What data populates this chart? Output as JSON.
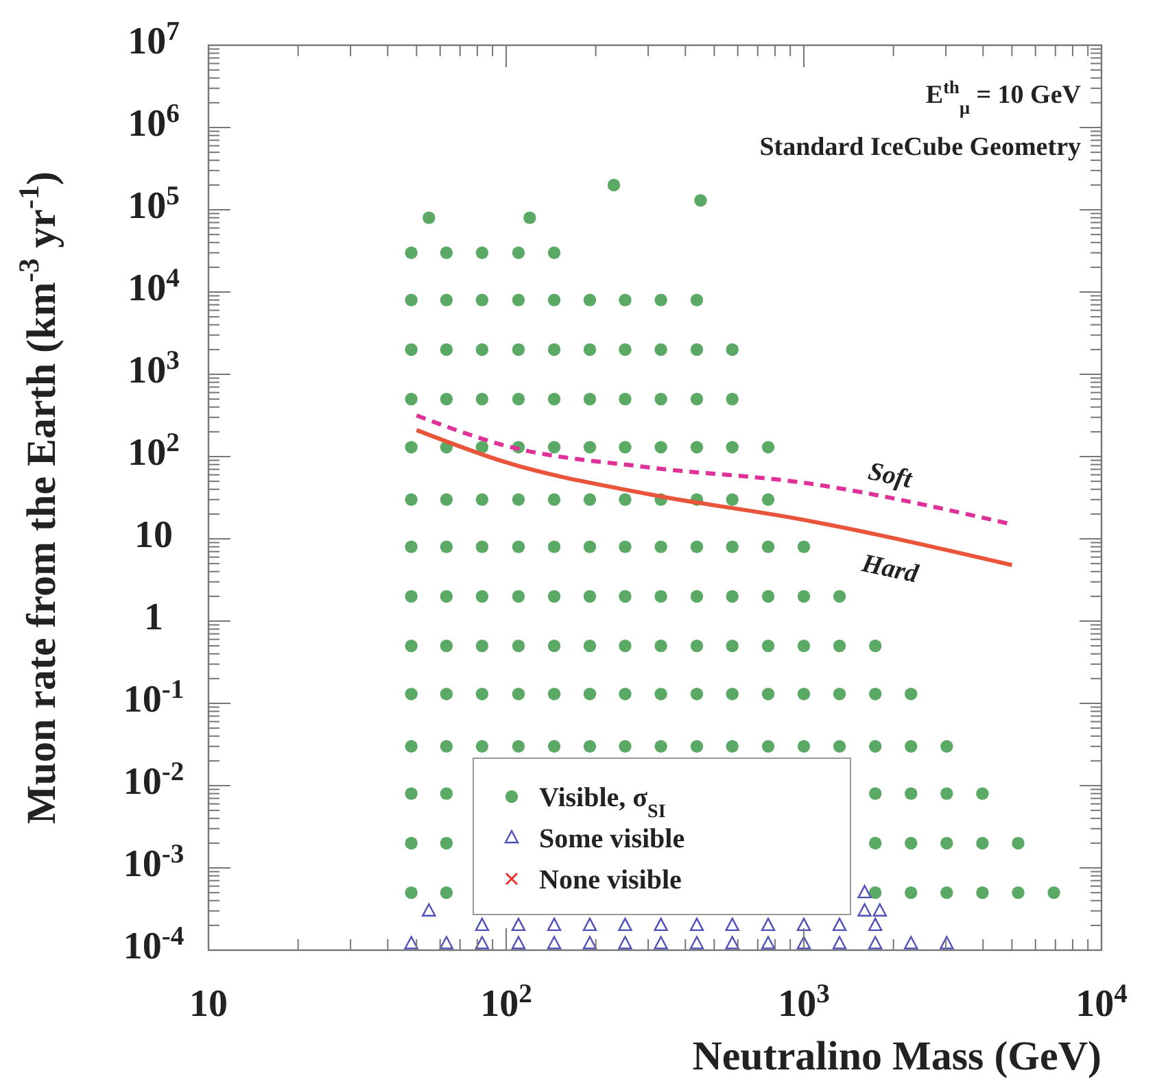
{
  "chart_data": {
    "type": "scatter",
    "xlabel": "Neutralino Mass (GeV)",
    "ylabel": "Muon rate from the Earth (km$^{-3}$ yr$^{-1}$)",
    "annotations": [
      "E$^{th}$$_{μ}$ = 10 GeV",
      "Standard IceCube Geometry"
    ],
    "log": "xy",
    "grid": false,
    "legend": "bottom",
    "xlim": [
      10,
      10000
    ],
    "xticks": [
      10,
      {
        "value": 100,
        "label": "10$^{2}$"
      },
      {
        "value": 1000,
        "label": "10$^{3}$"
      },
      {
        "value": 10000,
        "label": "10$^{4}$"
      }
    ],
    "ylim": [
      0.0001,
      10000000
    ],
    "yticks": [
      {
        "value": 0.0001,
        "label": "10$^{-4}$"
      },
      {
        "value": 0.001,
        "label": "10$^{-3}$"
      },
      {
        "value": 0.01,
        "label": "10$^{-2}$"
      },
      {
        "value": 0.1,
        "label": "10$^{-1}$"
      },
      1,
      10,
      {
        "value": 100,
        "label": "10$^{2}$"
      },
      {
        "value": 1000,
        "label": "10$^{3}$"
      },
      {
        "value": 10000,
        "label": "10$^{4}$"
      },
      {
        "value": 100000,
        "label": "10$^{5}$"
      },
      {
        "value": 1000000,
        "label": "10$^{6}$"
      },
      {
        "value": 10000000,
        "label": "10$^{7}$"
      }
    ],
    "series": [
      {
        "name": "Visible, σ$_{SI}$",
        "marker": "circle",
        "color": "#5aa964",
        "x": [
          48,
          48,
          48,
          48,
          48,
          48,
          48,
          48,
          48,
          48,
          48,
          48,
          48,
          48,
          63,
          63,
          63,
          63,
          63,
          63,
          63,
          63,
          63,
          63,
          63,
          63,
          63,
          63,
          83,
          83,
          83,
          83,
          83,
          83,
          83,
          83,
          83,
          83,
          83,
          110,
          110,
          110,
          110,
          110,
          110,
          110,
          110,
          110,
          110,
          110,
          145,
          145,
          145,
          145,
          145,
          145,
          145,
          145,
          145,
          145,
          145,
          191,
          191,
          191,
          191,
          191,
          191,
          191,
          191,
          191,
          191,
          251,
          251,
          251,
          251,
          251,
          251,
          251,
          251,
          251,
          251,
          331,
          331,
          331,
          331,
          331,
          331,
          331,
          331,
          331,
          331,
          437,
          437,
          437,
          437,
          437,
          437,
          437,
          437,
          437,
          437,
          575,
          575,
          575,
          575,
          575,
          575,
          575,
          575,
          575,
          759,
          759,
          759,
          759,
          759,
          759,
          759,
          1000,
          1000,
          1000,
          1000,
          1000,
          1318,
          1318,
          1318,
          1318,
          1738,
          1738,
          1738,
          1738,
          1738,
          1738,
          2291,
          2291,
          2291,
          2291,
          2291,
          3020,
          3020,
          3020,
          3020,
          3981,
          3981,
          3981,
          5248,
          5248,
          6918,
          55,
          120,
          230,
          450
        ],
        "values": [
          0.0005,
          0.002,
          0.008,
          0.03,
          0.13,
          0.5,
          2,
          8,
          30,
          130,
          500,
          2000,
          8000,
          30000,
          0.0005,
          0.002,
          0.008,
          0.03,
          0.13,
          0.5,
          2,
          8,
          30,
          130,
          500,
          2000,
          8000,
          30000,
          0.03,
          0.13,
          0.5,
          2,
          8,
          30,
          130,
          500,
          2000,
          8000,
          30000,
          0.03,
          0.13,
          0.5,
          2,
          8,
          30,
          130,
          500,
          2000,
          8000,
          30000,
          0.03,
          0.13,
          0.5,
          2,
          8,
          30,
          130,
          500,
          2000,
          8000,
          30000,
          0.03,
          0.13,
          0.5,
          2,
          8,
          30,
          130,
          500,
          2000,
          8000,
          0.03,
          0.13,
          0.5,
          2,
          8,
          30,
          130,
          500,
          2000,
          8000,
          0.03,
          0.13,
          0.5,
          2,
          8,
          30,
          130,
          500,
          2000,
          8000,
          0.03,
          0.13,
          0.5,
          2,
          8,
          30,
          130,
          500,
          2000,
          8000,
          0.03,
          0.13,
          0.5,
          2,
          8,
          30,
          130,
          500,
          2000,
          0.03,
          0.13,
          0.5,
          2,
          8,
          30,
          130,
          0.03,
          0.13,
          0.5,
          2,
          8,
          0.03,
          0.13,
          0.5,
          2,
          0.0005,
          0.002,
          0.008,
          0.03,
          0.13,
          0.5,
          0.0005,
          0.002,
          0.008,
          0.03,
          0.13,
          0.0005,
          0.002,
          0.008,
          0.03,
          0.0005,
          0.002,
          0.008,
          0.0005,
          0.002,
          0.0005,
          80000,
          80000,
          200000,
          130000
        ]
      },
      {
        "name": "Some visible",
        "marker": "triangle",
        "color": "#5050b8",
        "x": [
          48,
          63,
          83,
          110,
          145,
          191,
          251,
          331,
          437,
          575,
          759,
          1000,
          1318,
          1738,
          2291,
          3020,
          83,
          110,
          145,
          191,
          251,
          331,
          437,
          575,
          759,
          1000,
          1318,
          1738,
          55,
          1600,
          1600,
          1800
        ],
        "values": [
          0.00012,
          0.00012,
          0.00012,
          0.00012,
          0.00012,
          0.00012,
          0.00012,
          0.00012,
          0.00012,
          0.00012,
          0.00012,
          0.00012,
          0.00012,
          0.00012,
          0.00012,
          0.00012,
          0.0002,
          0.0002,
          0.0002,
          0.0002,
          0.0002,
          0.0002,
          0.0002,
          0.0002,
          0.0002,
          0.0002,
          0.0002,
          0.0002,
          0.0003,
          0.0003,
          0.0005,
          0.0003
        ]
      },
      {
        "name": "None visible",
        "marker": "cross",
        "color": "#e83030"
      },
      {
        "name": "Soft",
        "type": "line",
        "line_style": "dashed",
        "color": "#e0309a",
        "x": [
          50,
          100,
          300,
          1000,
          5000
        ],
        "values": [
          316,
          135,
          74,
          48,
          15
        ]
      },
      {
        "name": "Hard",
        "type": "line",
        "line_style": "solid",
        "color": "#e8553a",
        "x": [
          50,
          100,
          300,
          1000,
          5000
        ],
        "values": [
          210,
          85,
          35,
          17,
          4.8
        ]
      }
    ]
  }
}
